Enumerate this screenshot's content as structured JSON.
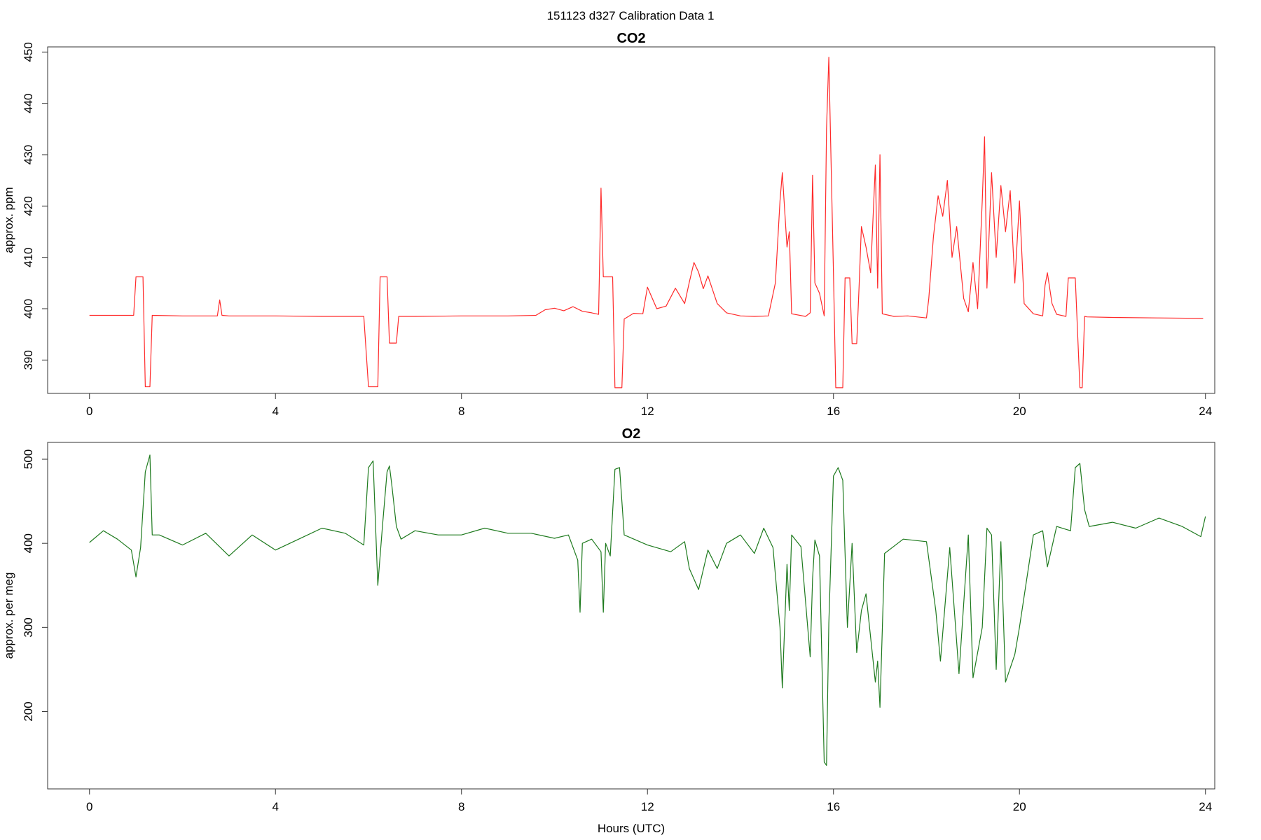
{
  "figure_title": "151123   d327   Calibration Data 1",
  "chart_data": [
    {
      "type": "line",
      "title": "CO2",
      "xlabel": "",
      "ylabel": "approx. ppm",
      "xlim": [
        -0.9,
        24.2
      ],
      "ylim": [
        383.5,
        451
      ],
      "xticks": [
        0,
        4,
        8,
        12,
        16,
        20,
        24
      ],
      "yticks": [
        390,
        400,
        410,
        420,
        430,
        440,
        450
      ],
      "color": "#ff2a2a",
      "grid": false,
      "x": [
        0,
        0.5,
        0.95,
        1.0,
        1.15,
        1.2,
        1.3,
        1.35,
        2.0,
        2.75,
        2.8,
        2.85,
        3.0,
        4,
        5,
        5.9,
        6.0,
        6.05,
        6.2,
        6.25,
        6.4,
        6.45,
        6.6,
        6.65,
        7,
        8,
        9,
        9.6,
        9.8,
        10.0,
        10.2,
        10.4,
        10.6,
        10.8,
        10.95,
        11.0,
        11.05,
        11.1,
        11.25,
        11.3,
        11.45,
        11.5,
        11.7,
        11.9,
        12.0,
        12.2,
        12.4,
        12.6,
        12.8,
        12.9,
        13.0,
        13.1,
        13.2,
        13.3,
        13.5,
        13.7,
        14.0,
        14.3,
        14.6,
        14.75,
        14.85,
        14.9,
        15.0,
        15.05,
        15.1,
        15.4,
        15.5,
        15.55,
        15.6,
        15.7,
        15.8,
        15.85,
        15.9,
        16.0,
        16.05,
        16.2,
        16.25,
        16.35,
        16.4,
        16.5,
        16.55,
        16.6,
        16.7,
        16.8,
        16.9,
        16.95,
        17.0,
        17.05,
        17.3,
        17.6,
        18.0,
        18.05,
        18.15,
        18.25,
        18.35,
        18.45,
        18.55,
        18.65,
        18.8,
        18.9,
        19.0,
        19.1,
        19.2,
        19.25,
        19.3,
        19.4,
        19.5,
        19.6,
        19.7,
        19.8,
        19.9,
        20.0,
        20.1,
        20.3,
        20.5,
        20.55,
        20.6,
        20.7,
        20.8,
        21.0,
        21.05,
        21.15,
        21.2,
        21.3,
        21.35,
        21.4,
        21.45,
        22,
        23,
        23.95
      ],
      "y": [
        398.7,
        398.7,
        398.7,
        406.2,
        406.2,
        384.8,
        384.8,
        398.7,
        398.6,
        398.6,
        401.7,
        398.7,
        398.6,
        398.6,
        398.5,
        398.5,
        384.8,
        384.8,
        384.8,
        406.2,
        406.2,
        393.3,
        393.3,
        398.5,
        398.5,
        398.6,
        398.6,
        398.7,
        399.8,
        400.1,
        399.6,
        400.4,
        399.5,
        399.2,
        398.9,
        423.5,
        406.2,
        406.2,
        406.2,
        384.6,
        384.6,
        398.0,
        399.1,
        399.0,
        404.2,
        400.0,
        400.5,
        404.0,
        401.0,
        405.2,
        409.0,
        407.1,
        403.9,
        406.4,
        401.0,
        399.2,
        398.6,
        398.5,
        398.6,
        405.0,
        421.0,
        426.5,
        412.0,
        415.0,
        399.0,
        398.5,
        399.2,
        426.0,
        405.0,
        403.0,
        398.6,
        435.0,
        449.0,
        407.0,
        384.6,
        384.6,
        406.0,
        406.0,
        393.2,
        393.2,
        404.0,
        416.0,
        412.0,
        407.0,
        428.0,
        404.0,
        430.0,
        399.0,
        398.5,
        398.6,
        398.2,
        402.0,
        414.0,
        422.0,
        418.0,
        425.0,
        410.0,
        416.0,
        402.0,
        399.4,
        409.0,
        400.0,
        421.0,
        433.5,
        404.0,
        426.5,
        410.0,
        424.0,
        415.0,
        423.0,
        405.0,
        421.0,
        401.0,
        399.0,
        398.6,
        404.5,
        407.0,
        401.0,
        398.9,
        398.5,
        406.0,
        406.0,
        406.0,
        384.6,
        384.6,
        398.5,
        398.4,
        398.3,
        398.2,
        398.1
      ]
    },
    {
      "type": "line",
      "title": "O2",
      "xlabel": "Hours (UTC)",
      "ylabel": "approx. per meg",
      "xlim": [
        -0.9,
        24.2
      ],
      "ylim": [
        108,
        520
      ],
      "xticks": [
        0,
        4,
        8,
        12,
        16,
        20,
        24
      ],
      "yticks": [
        200,
        300,
        400,
        500
      ],
      "color": "#1e7a1e",
      "grid": false,
      "x": [
        0,
        0.3,
        0.6,
        0.9,
        1.0,
        1.1,
        1.2,
        1.3,
        1.35,
        1.5,
        2.0,
        2.5,
        3.0,
        3.5,
        4.0,
        4.5,
        5.0,
        5.5,
        5.9,
        6.0,
        6.1,
        6.2,
        6.3,
        6.4,
        6.45,
        6.5,
        6.6,
        6.7,
        7.0,
        7.5,
        8.0,
        8.5,
        9.0,
        9.5,
        10.0,
        10.3,
        10.5,
        10.55,
        10.6,
        10.8,
        11.0,
        11.05,
        11.1,
        11.2,
        11.3,
        11.4,
        11.5,
        12.0,
        12.5,
        12.8,
        12.9,
        13.1,
        13.3,
        13.5,
        13.7,
        14.0,
        14.3,
        14.5,
        14.7,
        14.85,
        14.9,
        15.0,
        15.05,
        15.1,
        15.3,
        15.5,
        15.55,
        15.6,
        15.7,
        15.8,
        15.85,
        15.9,
        16.0,
        16.1,
        16.2,
        16.3,
        16.4,
        16.5,
        16.6,
        16.7,
        16.9,
        16.95,
        17.0,
        17.1,
        17.5,
        18.0,
        18.2,
        18.3,
        18.5,
        18.7,
        18.9,
        19.0,
        19.2,
        19.3,
        19.4,
        19.5,
        19.6,
        19.7,
        19.9,
        20.0,
        20.3,
        20.5,
        20.6,
        20.8,
        21.1,
        21.2,
        21.3,
        21.4,
        21.5,
        22.0,
        22.5,
        23.0,
        23.5,
        23.9,
        24.0
      ],
      "y": [
        401,
        415,
        405,
        392,
        360,
        395,
        485,
        505,
        410,
        410,
        398,
        412,
        385,
        410,
        392,
        405,
        418,
        412,
        398,
        490,
        498,
        350,
        420,
        485,
        492,
        470,
        420,
        405,
        415,
        410,
        410,
        418,
        412,
        412,
        406,
        410,
        380,
        318,
        400,
        405,
        390,
        318,
        400,
        385,
        488,
        490,
        410,
        398,
        390,
        402,
        370,
        345,
        392,
        370,
        400,
        410,
        388,
        418,
        395,
        300,
        228,
        375,
        320,
        410,
        396,
        265,
        358,
        404,
        385,
        140,
        136,
        305,
        480,
        490,
        475,
        300,
        400,
        270,
        320,
        340,
        235,
        260,
        205,
        388,
        405,
        402,
        320,
        260,
        395,
        245,
        410,
        240,
        300,
        418,
        410,
        250,
        402,
        235,
        268,
        300,
        410,
        415,
        372,
        420,
        415,
        490,
        495,
        440,
        420,
        425,
        418,
        430,
        420,
        408,
        432
      ]
    }
  ]
}
